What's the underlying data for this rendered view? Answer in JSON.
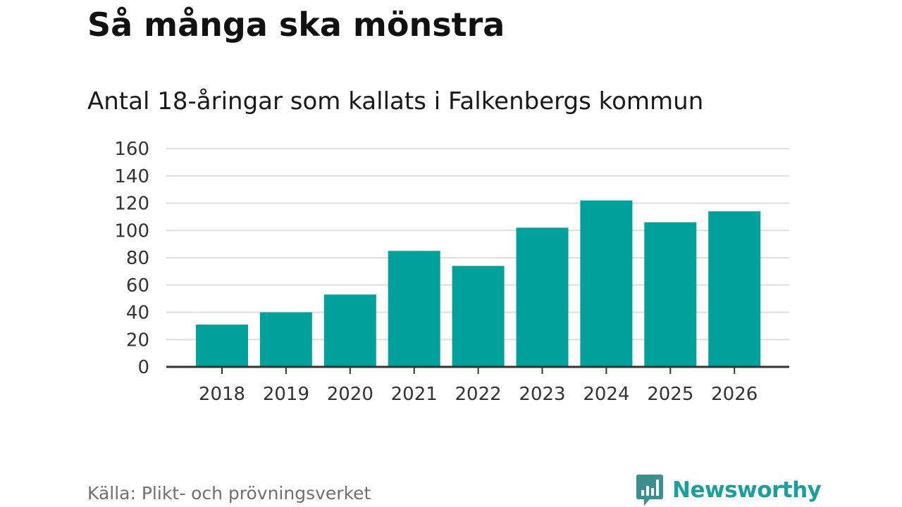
{
  "title": "Så många ska mönstra",
  "source": "Källa: Plikt- och prövningsverket",
  "brand": {
    "name": "Newsworthy",
    "icon": "bar-chart-bubble-icon",
    "color": "#1b9e9c"
  },
  "chart_data": {
    "type": "bar",
    "title": "Antal 18-åringar som kallats i Falkenbergs kommun",
    "xlabel": "",
    "ylabel": "",
    "categories": [
      "2018",
      "2019",
      "2020",
      "2021",
      "2022",
      "2023",
      "2024",
      "2025",
      "2026"
    ],
    "values": [
      31,
      40,
      53,
      85,
      74,
      102,
      122,
      106,
      114
    ],
    "ylim": [
      0,
      160
    ],
    "yticks": [
      "0",
      "20",
      "40",
      "60",
      "80",
      "100",
      "120",
      "140",
      "160"
    ],
    "grid": true,
    "bar_color": "#00a19a",
    "gridline_color": "#dddddd",
    "axis_color": "#333333"
  }
}
